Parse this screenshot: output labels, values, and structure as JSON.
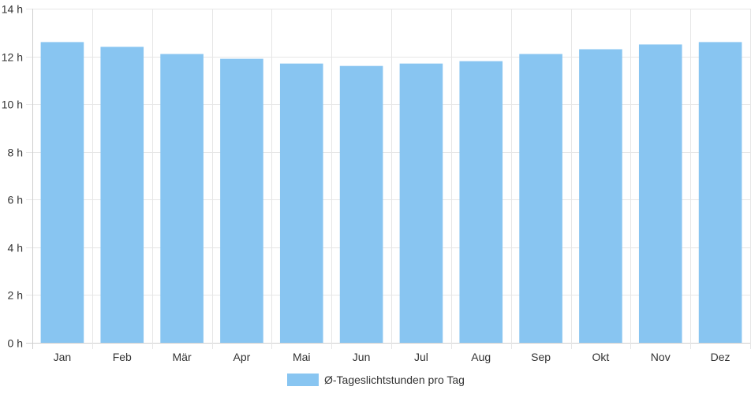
{
  "chart_data": {
    "type": "bar",
    "categories": [
      "Jan",
      "Feb",
      "Mär",
      "Apr",
      "Mai",
      "Jun",
      "Jul",
      "Aug",
      "Sep",
      "Okt",
      "Nov",
      "Dez"
    ],
    "series": [
      {
        "name": "Ø-Tageslichtstunden pro Tag",
        "values": [
          12.6,
          12.4,
          12.1,
          11.9,
          11.7,
          11.6,
          11.7,
          11.8,
          12.1,
          12.3,
          12.5,
          12.6
        ],
        "color": "#88c5f1"
      }
    ],
    "yticks": [
      0,
      2,
      4,
      6,
      8,
      10,
      12,
      14
    ],
    "ytick_suffix": " h",
    "ylim": [
      0,
      14
    ],
    "grid": true,
    "legend_position": "bottom"
  }
}
